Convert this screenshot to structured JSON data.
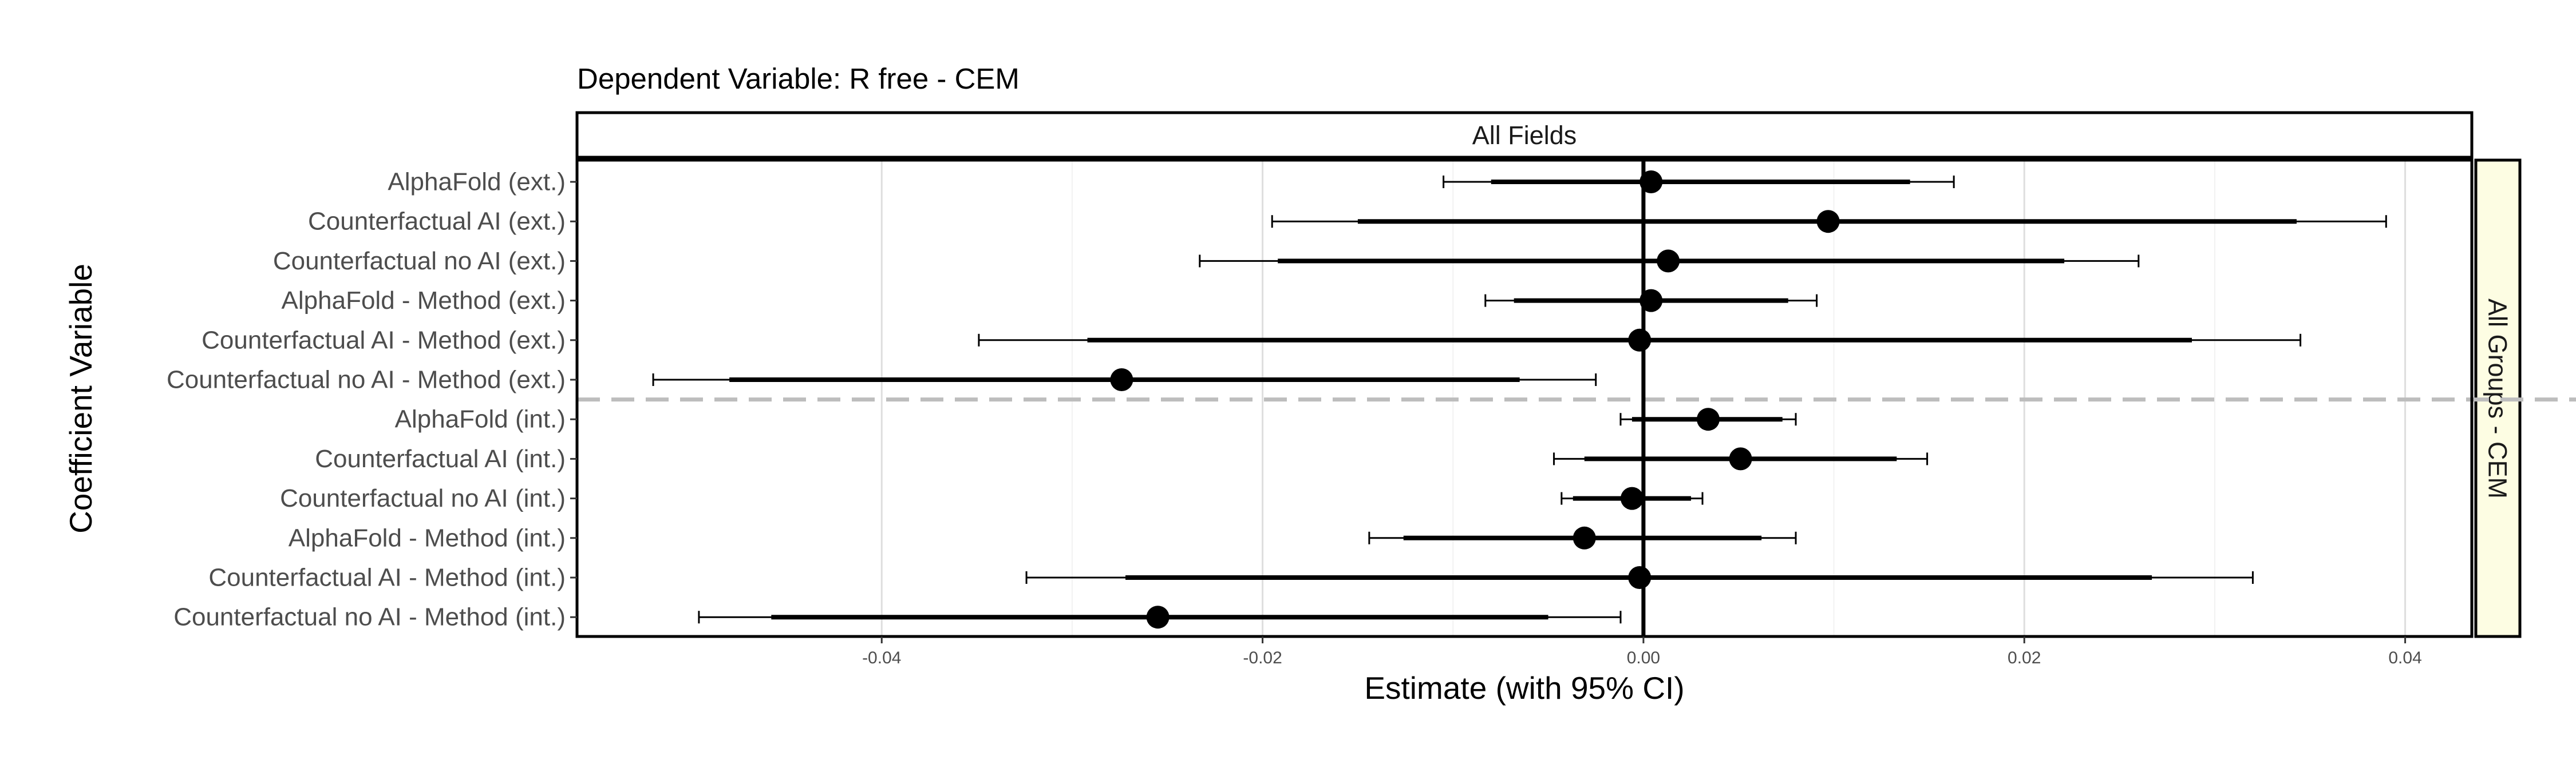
{
  "chart_data": {
    "type": "coefficient-plot",
    "title": "Dependent Variable: R free  -  CEM",
    "facet_column_label": "All Fields",
    "facet_row_label": "All Groups - CEM",
    "xlabel": "Estimate (with 95% CI)",
    "ylabel": "Coefficient Variable",
    "xlim": [
      -0.056,
      0.0435
    ],
    "x_ticks": [
      -0.04,
      -0.02,
      0.0,
      0.02,
      0.04
    ],
    "x_tick_labels": [
      "-0.04",
      "-0.02",
      "0.00",
      "0.02",
      "0.04"
    ],
    "reference_line_x": 0.0,
    "group_separator_after_index": 5,
    "grid": true,
    "coefficients": [
      {
        "label": "AlphaFold (ext.)",
        "estimate": 0.0004,
        "ci90": [
          -0.008,
          0.014
        ],
        "ci95": [
          -0.0105,
          0.0163
        ]
      },
      {
        "label": "Counterfactual AI (ext.)",
        "estimate": 0.0097,
        "ci90": [
          -0.015,
          0.0343
        ],
        "ci95": [
          -0.0195,
          0.039
        ]
      },
      {
        "label": "Counterfactual no AI (ext.)",
        "estimate": 0.0013,
        "ci90": [
          -0.0192,
          0.0221
        ],
        "ci95": [
          -0.0233,
          0.026
        ]
      },
      {
        "label": "AlphaFold - Method (ext.)",
        "estimate": 0.0004,
        "ci90": [
          -0.0068,
          0.0076
        ],
        "ci95": [
          -0.0083,
          0.0091
        ]
      },
      {
        "label": "Counterfactual AI - Method (ext.)",
        "estimate": -0.0002,
        "ci90": [
          -0.0292,
          0.0288
        ],
        "ci95": [
          -0.0349,
          0.0345
        ]
      },
      {
        "label": "Counterfactual no AI - Method (ext.)",
        "estimate": -0.0274,
        "ci90": [
          -0.048,
          -0.0065
        ],
        "ci95": [
          -0.052,
          -0.0025
        ]
      },
      {
        "label": "AlphaFold (int.)",
        "estimate": 0.0034,
        "ci90": [
          -0.0006,
          0.0073
        ],
        "ci95": [
          -0.0012,
          0.008
        ]
      },
      {
        "label": "Counterfactual AI (int.)",
        "estimate": 0.0051,
        "ci90": [
          -0.0031,
          0.0133
        ],
        "ci95": [
          -0.0047,
          0.0149
        ]
      },
      {
        "label": "Counterfactual no AI (int.)",
        "estimate": -0.0006,
        "ci90": [
          -0.0037,
          0.0025
        ],
        "ci95": [
          -0.0043,
          0.0031
        ]
      },
      {
        "label": "AlphaFold - Method (int.)",
        "estimate": -0.0031,
        "ci90": [
          -0.0126,
          0.0062
        ],
        "ci95": [
          -0.0144,
          0.008
        ]
      },
      {
        "label": "Counterfactual AI - Method (int.)",
        "estimate": -0.0002,
        "ci90": [
          -0.0272,
          0.0267
        ],
        "ci95": [
          -0.0324,
          0.032
        ]
      },
      {
        "label": "Counterfactual no AI - Method (int.)",
        "estimate": -0.0255,
        "ci90": [
          -0.0458,
          -0.005
        ],
        "ci95": [
          -0.0496,
          -0.0012
        ]
      }
    ]
  }
}
